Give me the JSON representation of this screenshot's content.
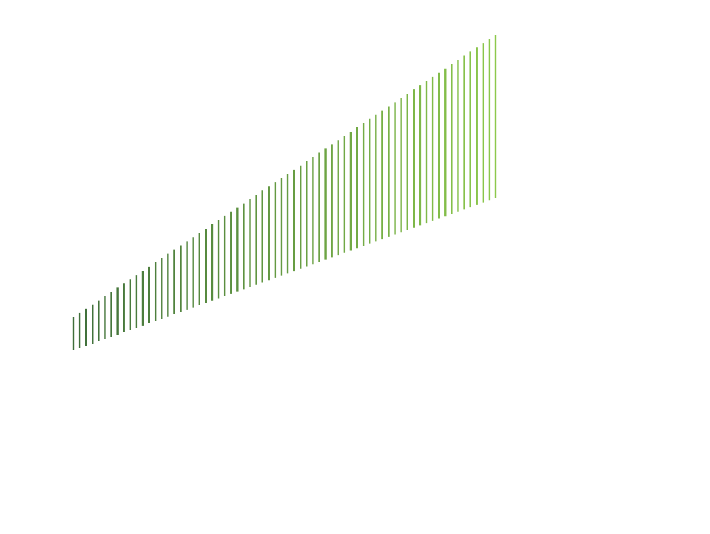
{
  "graphic": {
    "description_name": "gradient-stripe-wedge",
    "stripe_count": 68,
    "color_start": "#3f6e3a",
    "color_end": "#8cc84b",
    "background": "#ffffff"
  }
}
